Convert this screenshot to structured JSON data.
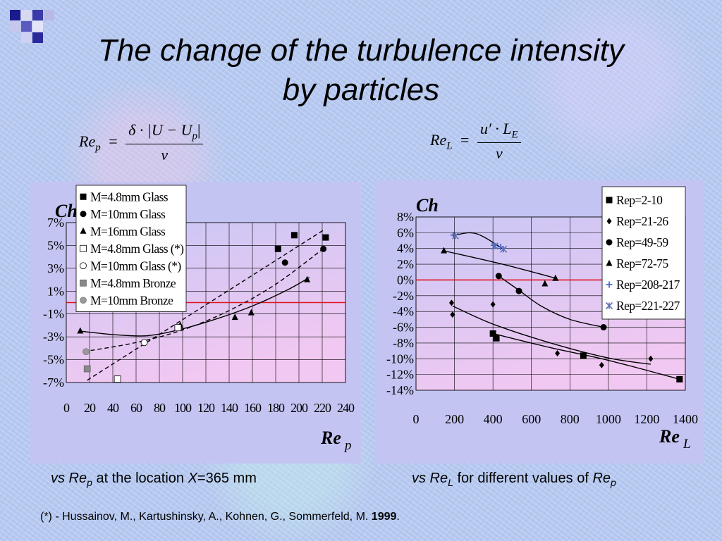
{
  "slide": {
    "title_line1": "The change of the turbulence intensity",
    "title_line2": "by particles",
    "formula_left": {
      "lhs_main": "Re",
      "lhs_sub": "p",
      "equals": "=",
      "numerator": "δ · |U − U",
      "numerator_sub": "p",
      "numerator_end": "|",
      "denominator": "ν"
    },
    "formula_right": {
      "lhs_main": "Re",
      "lhs_sub": "L",
      "equals": "=",
      "numerator": "u′ · L",
      "numerator_sub": "E",
      "denominator": "ν"
    },
    "caption_left": {
      "italic1": "vs Re",
      "sub": "p",
      "text": " at the location ",
      "italic2": "X",
      "text2": "=365 mm"
    },
    "caption_right": {
      "italic1": "vs Re",
      "sub": "L",
      "text": " for different values of ",
      "italic2": "Re",
      "sub2": "p"
    },
    "footnote": {
      "text": "(*) - Hussainov, M., Kartushinsky, A., Kohnen, G., Sommerfeld, M. ",
      "year": "1999",
      "end": "."
    }
  },
  "colors": {
    "plot_bg_top": "#c9c7f5",
    "plot_bg_bottom": "#f1c8f1",
    "zero_line": "#e0141e",
    "panel_bg": "#c4c4f3"
  },
  "chart_data": [
    {
      "type": "scatter",
      "ylabel": "Ch",
      "xlabel_main": "Re",
      "xlabel_sub": "p",
      "xlim": [
        0,
        240
      ],
      "ylim": [
        -7,
        7
      ],
      "x_ticks": [
        "0",
        "20",
        "40",
        "60",
        "80",
        "100",
        "120",
        "140",
        "160",
        "180",
        "200",
        "220",
        "240"
      ],
      "y_ticks": [
        "7%",
        "5%",
        "3%",
        "1%",
        "-1%",
        "-3%",
        "-5%",
        "-7%"
      ],
      "y_tick_values": [
        7,
        5,
        3,
        1,
        -1,
        -3,
        -5,
        -7
      ],
      "reference_line_y": 0,
      "legend_placement": "top-left",
      "series": [
        {
          "name": "M=4.8mm Glass",
          "marker": "square",
          "points": [
            [
              182,
              4.7
            ],
            [
              196,
              5.9
            ],
            [
              223,
              5.7
            ]
          ]
        },
        {
          "name": "M=10mm Glass",
          "marker": "circle",
          "points": [
            [
              188,
              3.5
            ],
            [
              221,
              4.7
            ]
          ]
        },
        {
          "name": "M=16mm Glass",
          "marker": "triangle",
          "points": [
            [
              12,
              -2.5
            ],
            [
              98,
              -2.0
            ],
            [
              145,
              -1.3
            ],
            [
              159,
              -0.9
            ],
            [
              207,
              2.0
            ]
          ]
        },
        {
          "name": "M=4.8mm Glass (*)",
          "marker": "square-open",
          "points": [
            [
              44,
              -6.7
            ],
            [
              96,
              -2.2
            ]
          ]
        },
        {
          "name": "M=10mm Glass (*)",
          "marker": "circle-open",
          "points": [
            [
              67,
              -3.5
            ]
          ]
        },
        {
          "name": "M=4.8mm Bronze",
          "marker": "square-gray",
          "points": [
            [
              18,
              -5.8
            ]
          ]
        },
        {
          "name": "M=10mm Bronze",
          "marker": "circle-gray",
          "points": [
            [
              17,
              -4.3
            ]
          ]
        }
      ],
      "trendlines": [
        {
          "style": "solid",
          "points": [
            [
              12,
              -2.5
            ],
            [
              40,
              -2.8
            ],
            [
              70,
              -2.9
            ],
            [
              100,
              -2.3
            ],
            [
              130,
              -1.4
            ],
            [
              160,
              -0.3
            ],
            [
              190,
              1.1
            ],
            [
              209,
              2.2
            ]
          ]
        },
        {
          "style": "dashed",
          "points": [
            [
              18,
              -6.8
            ],
            [
              222,
              6.4
            ]
          ]
        },
        {
          "style": "dashed",
          "points": [
            [
              15,
              -4.3
            ],
            [
              60,
              -3.5
            ],
            [
              100,
              -2.4
            ],
            [
              140,
              -0.7
            ],
            [
              180,
              1.6
            ],
            [
              222,
              4.8
            ]
          ]
        }
      ]
    },
    {
      "type": "scatter",
      "ylabel": "Ch",
      "xlabel_main": "Re",
      "xlabel_sub": "L",
      "xlim": [
        0,
        1400
      ],
      "ylim": [
        -14,
        8
      ],
      "x_ticks": [
        "0",
        "200",
        "400",
        "600",
        "800",
        "1000",
        "1200",
        "1400"
      ],
      "y_ticks": [
        "8%",
        "6%",
        "4%",
        "2%",
        "0%",
        "-2%",
        "-4%",
        "-6%",
        "-8%",
        "-10%",
        "-12%",
        "-14%"
      ],
      "y_tick_values": [
        8,
        6,
        4,
        2,
        0,
        -2,
        -4,
        -6,
        -8,
        -10,
        -12,
        -14
      ],
      "reference_line_y": 0,
      "legend_placement": "top-right",
      "series": [
        {
          "name": "Rep=2-10",
          "marker": "square",
          "points": [
            [
              400,
              -6.8
            ],
            [
              418,
              -7.4
            ],
            [
              870,
              -9.6
            ],
            [
              1370,
              -12.6
            ]
          ]
        },
        {
          "name": "Rep=21-26",
          "marker": "diamond",
          "points": [
            [
              185,
              -2.9
            ],
            [
              190,
              -4.4
            ],
            [
              400,
              -3.1
            ],
            [
              735,
              -9.3
            ],
            [
              965,
              -10.8
            ],
            [
              1220,
              -10.0
            ]
          ]
        },
        {
          "name": "Rep=49-59",
          "marker": "circle",
          "points": [
            [
              430,
              0.5
            ],
            [
              535,
              -1.4
            ],
            [
              975,
              -6.0
            ]
          ]
        },
        {
          "name": "Rep=72-75",
          "marker": "triangle",
          "points": [
            [
              145,
              3.7
            ],
            [
              670,
              -0.5
            ],
            [
              725,
              0.2
            ]
          ]
        },
        {
          "name": "Rep=208-217",
          "marker": "plus",
          "points": [
            [
              195,
              5.7
            ],
            [
              405,
              4.4
            ],
            [
              440,
              4.2
            ]
          ]
        },
        {
          "name": "Rep=221-227",
          "marker": "asterisk",
          "points": [
            [
              205,
              5.6
            ],
            [
              410,
              4.3
            ],
            [
              455,
              3.9
            ]
          ]
        }
      ],
      "trendlines": [
        {
          "style": "solid",
          "points": [
            [
              145,
              3.7
            ],
            [
              450,
              2.0
            ],
            [
              730,
              0.2
            ]
          ]
        },
        {
          "style": "solid",
          "points": [
            [
              190,
              5.6
            ],
            [
              280,
              6.0
            ],
            [
              350,
              5.5
            ],
            [
              455,
              3.9
            ]
          ]
        },
        {
          "style": "solid",
          "points": [
            [
              430,
              0.5
            ],
            [
              535,
              -1.3
            ],
            [
              650,
              -3.3
            ],
            [
              800,
              -5.0
            ],
            [
              975,
              -6.0
            ]
          ]
        },
        {
          "style": "solid",
          "points": [
            [
              190,
              -3.3
            ],
            [
              400,
              -5.6
            ],
            [
              700,
              -8.0
            ],
            [
              1000,
              -9.9
            ],
            [
              1220,
              -10.7
            ]
          ]
        },
        {
          "style": "solid",
          "points": [
            [
              400,
              -6.8
            ],
            [
              700,
              -8.6
            ],
            [
              1000,
              -10.2
            ],
            [
              1370,
              -12.6
            ]
          ]
        }
      ]
    }
  ]
}
